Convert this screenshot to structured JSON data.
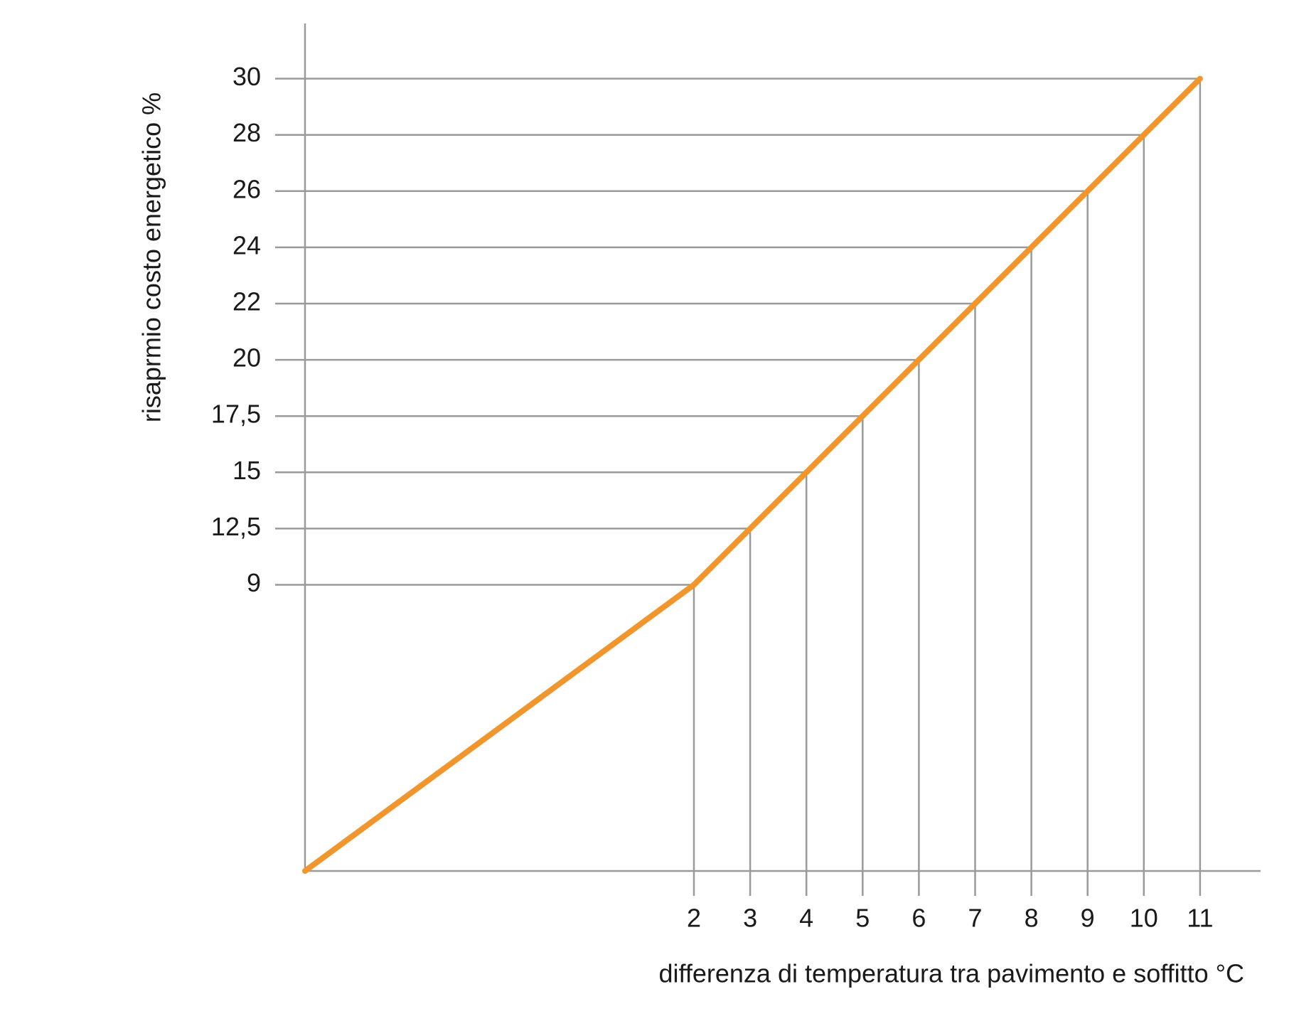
{
  "chart_data": {
    "type": "line",
    "x_label": "differenza di temperatura tra pavimento e soffitto °C",
    "y_label": "risaprmio costo energetico %",
    "x": [
      0,
      2,
      3,
      4,
      5,
      6,
      7,
      8,
      9,
      10,
      11
    ],
    "series": [
      {
        "color": "#f0962d",
        "values": [
          0,
          9,
          12.5,
          15,
          17.5,
          20,
          22,
          24,
          26,
          28,
          30
        ]
      }
    ],
    "xlim": [
      0,
      12
    ],
    "xticks": [
      2,
      3,
      4,
      5,
      6,
      7,
      8,
      9,
      10,
      11
    ],
    "ylim": [
      0,
      32
    ],
    "yticks": [
      9,
      {
        "value": 12.5,
        "label": "12,5"
      },
      15,
      {
        "value": 17.5,
        "label": "17,5"
      },
      20,
      22,
      24,
      26,
      28,
      30
    ],
    "grid": true
  }
}
